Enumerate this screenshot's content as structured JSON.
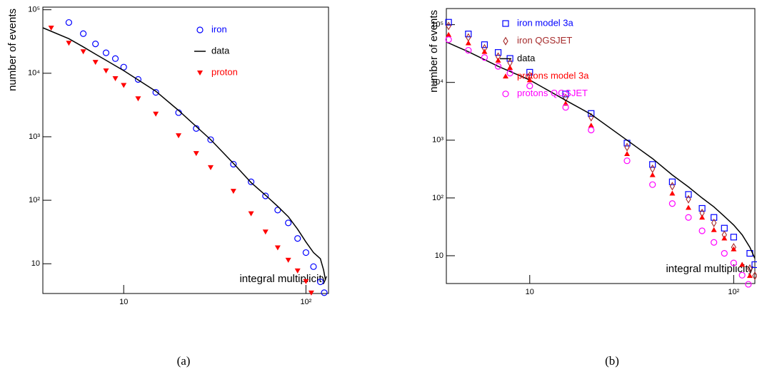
{
  "chart_data": [
    {
      "type": "scatter",
      "caption": "(a)",
      "x_label": "integral multiplicity",
      "y_label": "number of events",
      "log_x": true,
      "log_y": true,
      "legend": "upper right",
      "xlim": [
        3.6,
        133
      ],
      "ylim": [
        3.4,
        110000
      ],
      "xticks": [
        10,
        {
          "value": 100,
          "label": "10²"
        }
      ],
      "yticks": [
        10,
        {
          "value": 100,
          "label": "10²"
        },
        {
          "value": 1000,
          "label": "10³"
        },
        {
          "value": 10000,
          "label": "10⁴"
        },
        {
          "value": 100000,
          "label": "10⁵"
        }
      ],
      "series": [
        {
          "name": "iron",
          "color": "#0000ff",
          "marker": "circle-open",
          "x": [
            5,
            6,
            7,
            8,
            9,
            10,
            12,
            15,
            20,
            25,
            30,
            40,
            50,
            60,
            70,
            80,
            90,
            100,
            110,
            120,
            126
          ],
          "values": [
            63000,
            42000,
            29000,
            21000,
            17000,
            12500,
            8000,
            5000,
            2400,
            1350,
            900,
            370,
            195,
            117,
            70,
            44,
            25,
            15,
            9,
            5.2,
            3.5
          ]
        },
        {
          "name": "data",
          "color": "#000000",
          "marker": "line",
          "x": [
            3.6,
            5,
            6,
            7,
            8,
            10,
            15,
            20,
            30,
            40,
            50,
            60,
            70,
            80,
            90,
            100,
            110,
            120,
            125,
            128
          ],
          "values": [
            52000,
            35000,
            26000,
            20000,
            16000,
            11000,
            5200,
            2600,
            900,
            380,
            190,
            120,
            80,
            55,
            35,
            22,
            15,
            12,
            8,
            5.5
          ]
        },
        {
          "name": "proton",
          "color": "#ff0000",
          "marker": "triangle-down",
          "x": [
            4,
            5,
            6,
            7,
            8,
            9,
            10,
            12,
            15,
            20,
            25,
            30,
            40,
            50,
            60,
            70,
            80,
            90,
            100,
            107
          ],
          "values": [
            52000,
            30000,
            22000,
            15000,
            11000,
            8300,
            6500,
            4000,
            2300,
            1050,
            550,
            330,
            140,
            62,
            32,
            18,
            11.5,
            7.8,
            5.3,
            3.5
          ]
        }
      ]
    },
    {
      "type": "scatter",
      "caption": "(b)",
      "x_label": "integral multiplicity",
      "y_label": "number of events",
      "log_x": true,
      "log_y": true,
      "legend": "upper right",
      "xlim": [
        3.9,
        127
      ],
      "ylim": [
        3.3,
        190000
      ],
      "xticks": [
        10,
        {
          "value": 100,
          "label": "10²"
        }
      ],
      "yticks": [
        10,
        {
          "value": 100,
          "label": "10²"
        },
        {
          "value": 1000,
          "label": "10³"
        },
        {
          "value": 10000,
          "label": "10⁴"
        },
        {
          "value": 100000,
          "label": "10⁵"
        }
      ],
      "series": [
        {
          "name": "iron model 3a",
          "color": "#0000ff",
          "marker": "square-open",
          "x": [
            4,
            5,
            6,
            7,
            8,
            10,
            15,
            20,
            30,
            40,
            50,
            60,
            70,
            80,
            90,
            100,
            120,
            127
          ],
          "values": [
            110000,
            69000,
            45000,
            33000,
            26000,
            15000,
            6300,
            2900,
            890,
            380,
            190,
            115,
            66,
            46,
            30,
            21,
            11,
            7
          ]
        },
        {
          "name": "iron QGSJET",
          "color": "#a52a2a",
          "marker": "diamond-open",
          "x": [
            4,
            5,
            6,
            7,
            8,
            10,
            15,
            20,
            30,
            40,
            50,
            60,
            70,
            80,
            90,
            100,
            120,
            127
          ],
          "values": [
            95000,
            60000,
            39000,
            28000,
            22000,
            13000,
            5400,
            2500,
            760,
            320,
            160,
            95,
            55,
            37,
            23,
            14,
            6,
            4.5
          ]
        },
        {
          "name": "data",
          "color": "#000000",
          "marker": "line",
          "x": [
            3.9,
            5,
            7,
            10,
            15,
            20,
            30,
            40,
            50,
            60,
            70,
            80,
            90,
            100,
            110,
            120,
            127
          ],
          "values": [
            50000,
            34000,
            19000,
            11000,
            4900,
            2800,
            1000,
            480,
            250,
            155,
            100,
            70,
            48,
            34,
            23,
            14,
            9
          ]
        },
        {
          "name": "protons model 3a",
          "color": "#ff0000",
          "marker": "triangle-up",
          "x": [
            4,
            5,
            6,
            7,
            8,
            10,
            15,
            20,
            30,
            40,
            50,
            60,
            70,
            80,
            90,
            100,
            110,
            120
          ],
          "values": [
            67000,
            48000,
            34000,
            24000,
            18000,
            11000,
            4300,
            1800,
            580,
            250,
            120,
            68,
            46,
            28,
            20,
            13,
            7,
            4.5
          ]
        },
        {
          "name": "protons QGSJET",
          "color": "#ff00ff",
          "marker": "circle-open",
          "x": [
            4,
            5,
            6,
            7,
            8,
            10,
            15,
            20,
            30,
            40,
            50,
            60,
            70,
            80,
            90,
            100,
            110,
            118
          ],
          "values": [
            55000,
            36000,
            27000,
            19000,
            14500,
            8700,
            3700,
            1500,
            440,
            170,
            80,
            46,
            27,
            17,
            11,
            7.5,
            4.6,
            3.2
          ]
        }
      ]
    }
  ]
}
